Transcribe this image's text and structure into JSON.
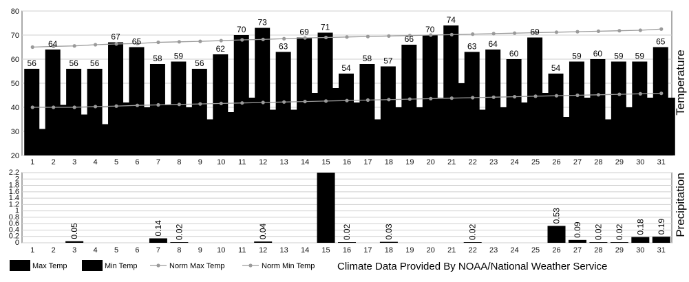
{
  "chart_data": [
    {
      "type": "bar",
      "ylabel": "Temperature",
      "ylim": [
        20,
        80
      ],
      "yticks": [
        20,
        30,
        40,
        50,
        60,
        70,
        80
      ],
      "grid": true,
      "categories": [
        "1",
        "2",
        "3",
        "4",
        "5",
        "6",
        "7",
        "8",
        "9",
        "10",
        "11",
        "12",
        "13",
        "14",
        "15",
        "16",
        "17",
        "18",
        "19",
        "20",
        "21",
        "22",
        "23",
        "24",
        "25",
        "26",
        "27",
        "28",
        "29",
        "30",
        "31"
      ],
      "series": [
        {
          "name": "Max Temp",
          "color": "#000000",
          "values": [
            56,
            64,
            56,
            56,
            67,
            65,
            58,
            59,
            56,
            62,
            70,
            73,
            63,
            69,
            71,
            54,
            58,
            57,
            66,
            70,
            74,
            63,
            64,
            60,
            69,
            54,
            59,
            60,
            59,
            59,
            65
          ]
        },
        {
          "name": "Min Temp",
          "color": "#000000",
          "values": [
            31,
            41,
            37,
            33,
            42,
            40,
            41,
            40,
            35,
            38,
            44,
            39,
            39,
            46,
            48,
            42,
            35,
            40,
            40,
            44,
            50,
            39,
            40,
            42,
            46,
            36,
            44,
            35,
            40,
            44,
            44
          ]
        },
        {
          "name": "Norm Max Temp",
          "color": "#9a9a9a",
          "values": [
            65,
            65.3,
            65.5,
            66,
            66.3,
            66.5,
            67,
            67.2,
            67.4,
            67.7,
            68,
            68.2,
            68.5,
            68.8,
            69,
            69.2,
            69.4,
            69.6,
            69.8,
            70,
            70.2,
            70.4,
            70.6,
            70.8,
            71,
            71.2,
            71.4,
            71.6,
            71.8,
            72,
            72.5
          ]
        },
        {
          "name": "Norm Min Temp",
          "color": "#9a9a9a",
          "values": [
            40,
            40,
            40,
            40.3,
            40.5,
            40.8,
            41,
            41.2,
            41.4,
            41.6,
            41.8,
            42,
            42.2,
            42.4,
            42.6,
            42.8,
            43,
            43.2,
            43.4,
            43.6,
            43.8,
            44,
            44.2,
            44.4,
            44.6,
            44.8,
            45,
            45.2,
            45.4,
            45.6,
            45.8
          ]
        }
      ],
      "data_labels": [
        "56",
        "64",
        "56",
        "56",
        "67",
        "65",
        "58",
        "59",
        "56",
        "62",
        "70",
        "73",
        "63",
        "69",
        "71",
        "54",
        "58",
        "57",
        "66",
        "70",
        "74",
        "63",
        "64",
        "60",
        "69",
        "54",
        "59",
        "60",
        "59",
        "59",
        "65"
      ]
    },
    {
      "type": "bar",
      "ylabel": "Precipitation",
      "ylim": [
        0,
        2.2
      ],
      "yticks": [
        "0",
        "0.2",
        "0.4",
        "0.6",
        "0.8",
        "1",
        "1.2",
        "1.4",
        "1.6",
        "1.8",
        "2",
        "2.2"
      ],
      "categories": [
        "1",
        "2",
        "3",
        "4",
        "5",
        "6",
        "7",
        "8",
        "9",
        "10",
        "11",
        "12",
        "13",
        "14",
        "15",
        "16",
        "17",
        "18",
        "19",
        "20",
        "21",
        "22",
        "23",
        "24",
        "25",
        "26",
        "27",
        "28",
        "29",
        "30",
        "31"
      ],
      "values": [
        0,
        0,
        0.05,
        0,
        0,
        0,
        0.14,
        0.02,
        0,
        0,
        0,
        0.04,
        0,
        0,
        2.2,
        0.02,
        0,
        0.03,
        0,
        0,
        0,
        0.02,
        0,
        0,
        0,
        0.53,
        0.09,
        0.02,
        0.02,
        0.18,
        0.19
      ],
      "data_labels": [
        "",
        "",
        "0.05",
        "",
        "",
        "",
        "0.14",
        "0.02",
        "",
        "",
        "",
        "0.04",
        "",
        "",
        "",
        "0.02",
        "",
        "0.03",
        "",
        "",
        "",
        "0.02",
        "",
        "",
        "",
        "0.53",
        "0.09",
        "0.02",
        "0.02",
        "0.18",
        "0.19"
      ]
    }
  ],
  "legend": {
    "items": [
      {
        "label": "Max Temp",
        "kind": "box"
      },
      {
        "label": "Min Temp",
        "kind": "box"
      },
      {
        "label": "Norm Max Temp",
        "kind": "line"
      },
      {
        "label": "Norm Min Temp",
        "kind": "line"
      }
    ],
    "credit": "Climate Data Provided By NOAA/National Weather Service"
  },
  "colors": {
    "bars": "#000000",
    "norm_lines": "#9a9a9a",
    "grid": "#cfcfcf",
    "background": "#ffffff"
  }
}
